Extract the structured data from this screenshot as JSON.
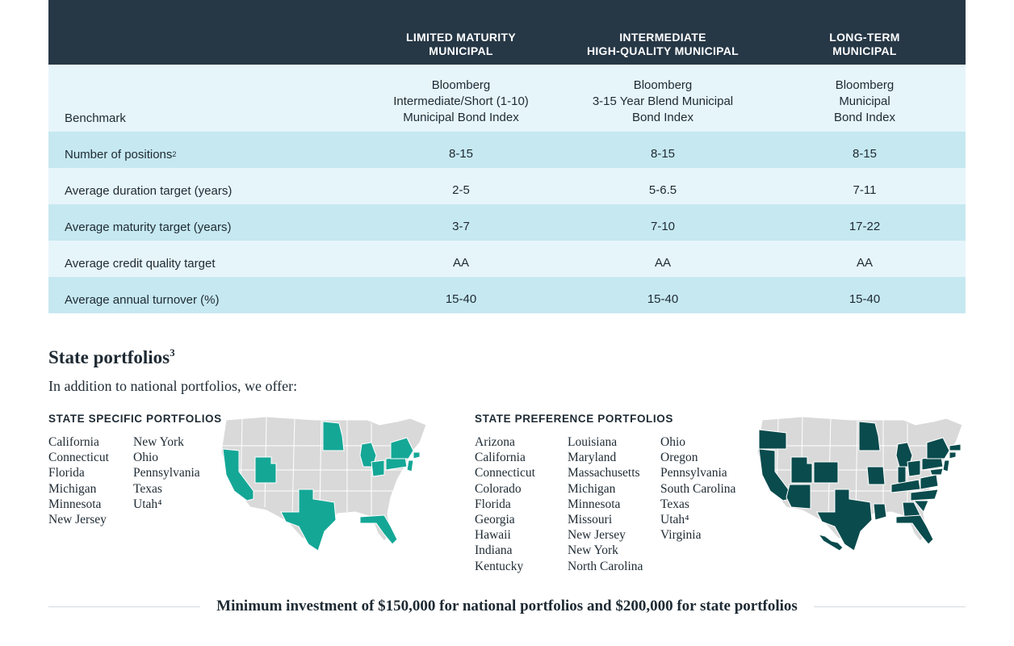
{
  "table": {
    "headers": [
      {
        "line1": "LIMITED MATURITY",
        "line2": "MUNICIPAL"
      },
      {
        "line1": "INTERMEDIATE",
        "line2": "HIGH-QUALITY MUNICIPAL"
      },
      {
        "line1": "LONG-TERM",
        "line2": "MUNICIPAL"
      }
    ],
    "benchmark": {
      "label": "Benchmark",
      "values": [
        [
          "Bloomberg",
          "Intermediate/Short (1-10)",
          "Municipal Bond Index"
        ],
        [
          "Bloomberg",
          "3-15 Year Blend Municipal",
          "Bond Index"
        ],
        [
          "Bloomberg",
          "Municipal",
          "Bond Index"
        ]
      ]
    },
    "rows": [
      {
        "label": "Number of positions",
        "sup": "2",
        "values": [
          "8-15",
          "8-15",
          "8-15"
        ]
      },
      {
        "label": "Average duration target (years)",
        "sup": "",
        "values": [
          "2-5",
          "5-6.5",
          "7-11"
        ]
      },
      {
        "label": "Average maturity target (years)",
        "sup": "",
        "values": [
          "3-7",
          "7-10",
          "17-22"
        ]
      },
      {
        "label": "Average credit quality target",
        "sup": "",
        "values": [
          "AA",
          "AA",
          "AA"
        ]
      },
      {
        "label": "Average annual turnover (%)",
        "sup": "",
        "values": [
          "15-40",
          "15-40",
          "15-40"
        ]
      }
    ]
  },
  "state_section": {
    "title": "State portfolios",
    "title_sup": "3",
    "intro": "In addition to national portfolios, we offer:"
  },
  "specific": {
    "title": "STATE SPECIFIC PORTFOLIOS",
    "col1": [
      "California",
      "Connecticut",
      "Florida",
      "Michigan",
      "Minnesota",
      "New Jersey"
    ],
    "col2": [
      "New York",
      "Ohio",
      "Pennsylvania",
      "Texas",
      "Utah⁴"
    ],
    "map_color": "#14a796"
  },
  "preference": {
    "title": "STATE PREFERENCE PORTFOLIOS",
    "col1": [
      "Arizona",
      "California",
      "Connecticut",
      "Colorado",
      "Florida",
      "Georgia",
      "Hawaii",
      "Indiana",
      "Kentucky"
    ],
    "col2": [
      "Louisiana",
      "Maryland",
      "Massachusetts",
      "Michigan",
      "Minnesota",
      "Missouri",
      "New Jersey",
      "New York",
      "North Carolina"
    ],
    "col3": [
      "Ohio",
      "Oregon",
      "Pennsylvania",
      "South Carolina",
      "Texas",
      "Utah⁴",
      "Virginia"
    ],
    "map_color": "#0a4b4d"
  },
  "footer": "Minimum investment of $150,000 for national portfolios and $200,000 for state portfolios",
  "colors": {
    "header_bg": "#263746",
    "row_light": "#e6f5fa",
    "row_dark": "#c6e8f1",
    "map_base": "#d9d9d9"
  }
}
